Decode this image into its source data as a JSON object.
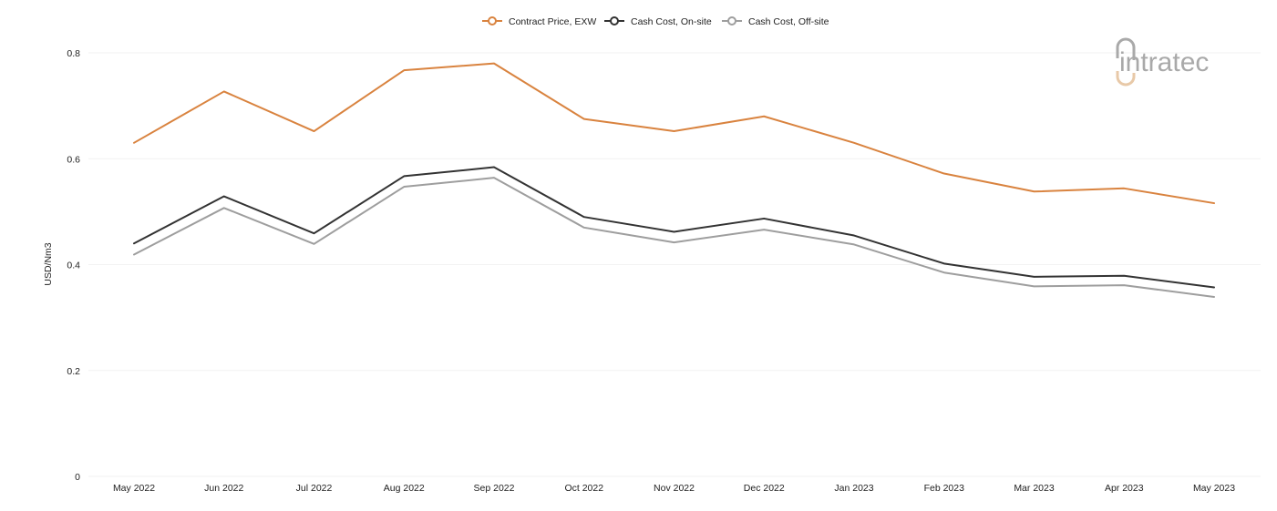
{
  "chart_data": {
    "type": "line",
    "title": "",
    "xlabel": "",
    "ylabel": "USD/Nm3",
    "ylim": [
      0,
      0.8
    ],
    "yticks": [
      "0",
      "0.2",
      "0.4",
      "0.6",
      "0.8"
    ],
    "ytick_values": [
      0,
      0.2,
      0.4,
      0.6,
      0.8
    ],
    "grid": true,
    "legend_position": "top-center",
    "categories": [
      "May 2022",
      "Jun 2022",
      "Jul 2022",
      "Aug 2022",
      "Sep 2022",
      "Oct 2022",
      "Nov 2022",
      "Dec 2022",
      "Jan 2023",
      "Feb 2023",
      "Mar 2023",
      "Apr 2023",
      "May 2023"
    ],
    "series": [
      {
        "name": "Contract Price, EXW",
        "color": "#d9833f",
        "values": [
          0.63,
          0.727,
          0.652,
          0.767,
          0.78,
          0.675,
          0.652,
          0.68,
          0.63,
          0.572,
          0.538,
          0.544,
          0.516
        ]
      },
      {
        "name": "Cash Cost, On-site",
        "color": "#333333",
        "values": [
          0.44,
          0.529,
          0.459,
          0.567,
          0.584,
          0.49,
          0.462,
          0.487,
          0.455,
          0.402,
          0.377,
          0.379,
          0.357
        ]
      },
      {
        "name": "Cash Cost, Off-site",
        "color": "#9e9e9e",
        "values": [
          0.419,
          0.507,
          0.439,
          0.547,
          0.564,
          0.47,
          0.442,
          0.466,
          0.438,
          0.385,
          0.359,
          0.361,
          0.339
        ]
      }
    ]
  },
  "logo": {
    "text": "intratec",
    "accent_color": "#e8c9a8",
    "text_color": "#a9a9a9"
  }
}
